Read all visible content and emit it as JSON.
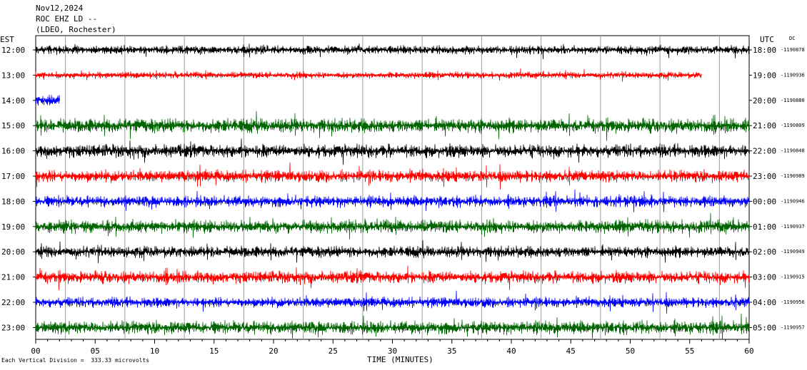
{
  "header": {
    "date": "Nov12,2024",
    "station": "ROC EHZ LD --",
    "network": "(LDEO, Rochester)"
  },
  "left_tz": "EST",
  "right_tz": "UTC",
  "dc_label": "DC",
  "footer": "Each Vertical Division =  333.33 microvolts",
  "chart_data": {
    "type": "line",
    "title": "",
    "xlabel": "TIME (MINUTES)",
    "xlim": [
      0,
      60
    ],
    "x_ticks": [
      "00",
      "05",
      "10",
      "15",
      "20",
      "25",
      "30",
      "35",
      "40",
      "45",
      "50",
      "55",
      "60"
    ],
    "y_left_labels": [
      "12:00",
      "13:00",
      "14:00",
      "15:00",
      "16:00",
      "17:00",
      "18:00",
      "19:00",
      "20:00",
      "21:00",
      "22:00",
      "23:00"
    ],
    "y_right_labels": [
      "18:00",
      "19:00",
      "20:00",
      "21:00",
      "22:00",
      "23:00",
      "00:00",
      "01:00",
      "02:00",
      "03:00",
      "04:00",
      "05:00"
    ],
    "dc_offsets": [
      "-1190878",
      "-1190936",
      "-1190880",
      "-1190809",
      "-1190848",
      "-1190989",
      "-1190946",
      "-1190937",
      "-1190949",
      "-1190915",
      "-1190956",
      "-1190957"
    ],
    "colors": [
      "#000000",
      "#ff0000",
      "#0000ff",
      "#006400"
    ],
    "trace_colors": [
      "#000000",
      "#ff0000",
      "#0000ff",
      "#006400",
      "#000000",
      "#ff0000",
      "#0000ff",
      "#006400",
      "#000000",
      "#ff0000",
      "#0000ff",
      "#006400"
    ],
    "trace_end_minute": [
      60,
      56,
      2,
      60,
      60,
      60,
      60,
      60,
      60,
      60,
      60,
      60
    ],
    "relative_noise": [
      0.45,
      0.35,
      0.6,
      0.75,
      0.7,
      0.65,
      0.6,
      0.7,
      0.6,
      0.65,
      0.55,
      0.7
    ],
    "grid": true,
    "vertical_divider_minutes": [
      2.5,
      7.5,
      12.5,
      17.5,
      22.5,
      27.5,
      32.5,
      37.5,
      42.5,
      47.5,
      52.5,
      57.5
    ]
  }
}
